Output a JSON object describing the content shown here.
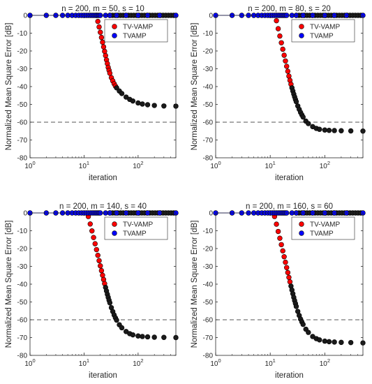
{
  "chart_data": [
    {
      "type": "scatter",
      "title": "n = 200, m = 50, s = 10",
      "xlabel": "iteration",
      "ylabel": "Normalized Mean Square Error [dB]",
      "x_scale": "log",
      "xlim": [
        1,
        500
      ],
      "ylim": [
        -80,
        0
      ],
      "x_ticks": [
        1,
        10,
        100
      ],
      "x_tick_labels": [
        "10",
        "10",
        "10"
      ],
      "x_tick_exponents": [
        "0",
        "1",
        "2"
      ],
      "y_ticks": [
        0,
        -10,
        -20,
        -30,
        -40,
        -50,
        -60,
        -70,
        -80
      ],
      "y_tick_labels": [
        "0",
        "-10",
        "-20",
        "-30",
        "-40",
        "-50",
        "-60",
        "-70",
        "-80"
      ],
      "reference_line": -60,
      "legend_position": "top-right",
      "series": [
        {
          "name": "TV-VAMP",
          "color": "#ff0000",
          "x": [
            17,
            18,
            19,
            20,
            21,
            22,
            23,
            24,
            25,
            26,
            27,
            28,
            29,
            30,
            32,
            34,
            36,
            38,
            40,
            45,
            50,
            60,
            70,
            80,
            100,
            120,
            150,
            200,
            300,
            500
          ],
          "y": [
            0,
            -3.4,
            -6.5,
            -9.5,
            -12.4,
            -15.1,
            -17.7,
            -20.2,
            -22.6,
            -25,
            -27.1,
            -29.2,
            -30.9,
            -32.5,
            -35,
            -36.8,
            -38.4,
            -39.7,
            -40.7,
            -42.5,
            -43.9,
            -45.9,
            -47.2,
            -48.1,
            -49.2,
            -49.8,
            -50.2,
            -50.6,
            -50.9,
            -51
          ]
        },
        {
          "name": "TVAMP",
          "color": "#0000ff",
          "x": [
            1,
            2,
            3,
            4,
            5,
            6,
            7,
            8,
            9,
            10,
            11,
            12,
            13,
            14,
            15,
            16,
            17,
            18,
            19,
            20,
            25,
            30,
            40,
            60,
            100,
            150,
            250,
            500
          ],
          "y": [
            0,
            0,
            0,
            0,
            0,
            0,
            0,
            0,
            0,
            0,
            0,
            0,
            0,
            0,
            0,
            0,
            0,
            0,
            0,
            0,
            0,
            0,
            0,
            0,
            0,
            0,
            0,
            0
          ]
        }
      ]
    },
    {
      "type": "scatter",
      "title": "n = 200, m = 80, s = 20",
      "xlabel": "iteration",
      "ylabel": "Normalized Mean Square Error [dB]",
      "x_scale": "log",
      "xlim": [
        1,
        500
      ],
      "ylim": [
        -80,
        0
      ],
      "x_ticks": [
        1,
        10,
        100
      ],
      "x_tick_labels": [
        "10",
        "10",
        "10"
      ],
      "x_tick_exponents": [
        "0",
        "1",
        "2"
      ],
      "y_ticks": [
        0,
        -10,
        -20,
        -30,
        -40,
        -50,
        -60,
        -70,
        -80
      ],
      "y_tick_labels": [
        "0",
        "-10",
        "-20",
        "-30",
        "-40",
        "-50",
        "-60",
        "-70",
        "-80"
      ],
      "reference_line": -60,
      "legend_position": "top-right",
      "series": [
        {
          "name": "TV-VAMP",
          "color": "#ff0000",
          "x": [
            13,
            14,
            15,
            16,
            17,
            18,
            19,
            20,
            21,
            22,
            23,
            24,
            25,
            26,
            27,
            28,
            29,
            30,
            32,
            34,
            36,
            38,
            40,
            45,
            50,
            60,
            70,
            80,
            100,
            120,
            150,
            200,
            300,
            500
          ],
          "y": [
            -3,
            -7.5,
            -11.6,
            -15.4,
            -19,
            -22.4,
            -25.6,
            -28.6,
            -31.4,
            -34.1,
            -36.5,
            -38.7,
            -40.7,
            -42.5,
            -44.2,
            -45.8,
            -47.2,
            -48.5,
            -50.9,
            -52.8,
            -54.5,
            -55.9,
            -57.1,
            -59.4,
            -60.8,
            -62.5,
            -63.5,
            -64,
            -64.4,
            -64.6,
            -64.7,
            -64.8,
            -64.9,
            -65
          ]
        },
        {
          "name": "TVAMP",
          "color": "#0000ff",
          "x": [
            1,
            2,
            3,
            4,
            5,
            6,
            7,
            8,
            9,
            10,
            11,
            12,
            13,
            14,
            15,
            16,
            17,
            18,
            19,
            20,
            25,
            30,
            40,
            60,
            100,
            150,
            250,
            500
          ],
          "y": [
            0,
            0,
            0,
            0,
            0,
            0,
            0,
            0,
            0,
            0,
            0,
            0,
            0,
            0,
            0,
            0,
            0,
            0,
            0,
            0,
            0,
            0,
            0,
            0,
            0,
            0,
            0,
            0
          ]
        }
      ]
    },
    {
      "type": "scatter",
      "title": "n = 200, m = 140, s = 40",
      "xlabel": "iteration",
      "ylabel": "Normalized Mean Square Error [dB]",
      "x_scale": "log",
      "xlim": [
        1,
        500
      ],
      "ylim": [
        -80,
        0
      ],
      "x_ticks": [
        1,
        10,
        100
      ],
      "x_tick_labels": [
        "10",
        "10",
        "10"
      ],
      "x_tick_exponents": [
        "0",
        "1",
        "2"
      ],
      "y_ticks": [
        0,
        -10,
        -20,
        -30,
        -40,
        -50,
        -60,
        -70,
        -80
      ],
      "y_tick_labels": [
        "0",
        "-10",
        "-20",
        "-30",
        "-40",
        "-50",
        "-60",
        "-70",
        "-80"
      ],
      "reference_line": -60,
      "legend_position": "top-right",
      "series": [
        {
          "name": "TV-VAMP",
          "color": "#ff0000",
          "x": [
            12,
            13,
            14,
            15,
            16,
            17,
            18,
            19,
            20,
            21,
            22,
            23,
            24,
            25,
            26,
            27,
            28,
            29,
            30,
            32,
            34,
            36,
            38,
            40,
            45,
            50,
            60,
            70,
            80,
            100,
            120,
            150,
            200,
            300,
            500
          ],
          "y": [
            -2,
            -6.2,
            -10.1,
            -13.8,
            -17.3,
            -20.6,
            -23.8,
            -26.8,
            -29.7,
            -32.4,
            -35,
            -37.4,
            -39.7,
            -41.8,
            -43.8,
            -45.7,
            -47.4,
            -49,
            -50.5,
            -53.2,
            -55.4,
            -57.3,
            -58.9,
            -60.2,
            -62.8,
            -64.5,
            -66.6,
            -67.8,
            -68.5,
            -69.1,
            -69.4,
            -69.6,
            -69.8,
            -69.9,
            -70
          ]
        },
        {
          "name": "TVAMP",
          "color": "#0000ff",
          "x": [
            1,
            2,
            3,
            4,
            5,
            6,
            7,
            8,
            9,
            10,
            11,
            12,
            13,
            14,
            15,
            16,
            17,
            18,
            19,
            20,
            25,
            30,
            40,
            60,
            100,
            150,
            250,
            500
          ],
          "y": [
            0,
            0,
            0,
            0,
            0,
            0,
            0,
            0,
            0,
            0,
            0,
            0,
            0,
            0,
            0,
            0,
            0,
            0,
            0,
            0,
            0,
            0,
            0,
            0,
            0,
            0,
            0,
            0
          ]
        }
      ]
    },
    {
      "type": "scatter",
      "title": "n = 200, m = 160, s = 60",
      "xlabel": "iteration",
      "ylabel": "Normalized Mean Square Error [dB]",
      "x_scale": "log",
      "xlim": [
        1,
        500
      ],
      "ylim": [
        -80,
        0
      ],
      "x_ticks": [
        1,
        10,
        100
      ],
      "x_tick_labels": [
        "10",
        "10",
        "10"
      ],
      "x_tick_exponents": [
        "0",
        "1",
        "2"
      ],
      "y_ticks": [
        0,
        -10,
        -20,
        -30,
        -40,
        -50,
        -60,
        -70,
        -80
      ],
      "y_tick_labels": [
        "0",
        "-10",
        "-20",
        "-30",
        "-40",
        "-50",
        "-60",
        "-70",
        "-80"
      ],
      "reference_line": -60,
      "legend_position": "top-right",
      "series": [
        {
          "name": "TV-VAMP",
          "color": "#ff0000",
          "x": [
            12,
            13,
            14,
            15,
            16,
            17,
            18,
            19,
            20,
            21,
            22,
            23,
            24,
            25,
            26,
            27,
            28,
            29,
            30,
            32,
            34,
            36,
            38,
            40,
            45,
            50,
            60,
            70,
            80,
            100,
            120,
            150,
            200,
            300,
            500
          ],
          "y": [
            -2,
            -6.3,
            -10.4,
            -14.2,
            -17.8,
            -21.3,
            -24.6,
            -27.7,
            -30.7,
            -33.5,
            -36.2,
            -38.7,
            -41.1,
            -43.3,
            -45.4,
            -47.4,
            -49.2,
            -50.9,
            -52.5,
            -55.3,
            -57.6,
            -59.6,
            -61.2,
            -62.6,
            -65.3,
            -67.1,
            -69.4,
            -70.6,
            -71.3,
            -72,
            -72.3,
            -72.5,
            -72.7,
            -72.8,
            -73
          ]
        },
        {
          "name": "TVAMP",
          "color": "#0000ff",
          "x": [
            1,
            2,
            3,
            4,
            5,
            6,
            7,
            8,
            9,
            10,
            11,
            12,
            13,
            14,
            15,
            16,
            17,
            18,
            19,
            20,
            25,
            30,
            40,
            60,
            100,
            150,
            250,
            500
          ],
          "y": [
            0,
            0,
            0,
            0,
            0,
            0,
            0,
            0,
            0,
            0,
            0,
            0,
            0,
            0,
            0,
            0,
            0,
            0,
            0,
            0,
            0,
            0,
            0,
            0,
            0,
            0,
            0,
            0
          ]
        }
      ]
    }
  ]
}
